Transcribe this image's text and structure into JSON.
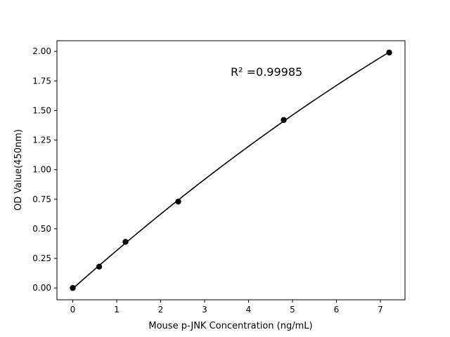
{
  "chart_data": {
    "type": "scatter",
    "title": "",
    "xlabel": "Mouse p-JNK Concentration (ng/mL)",
    "ylabel": "OD Value(450nm)",
    "xlim": [
      -0.36,
      7.56
    ],
    "ylim": [
      -0.1,
      2.09
    ],
    "xticks": [
      0,
      1,
      2,
      3,
      4,
      5,
      6,
      7
    ],
    "xtick_labels": [
      "0",
      "1",
      "2",
      "3",
      "4",
      "5",
      "6",
      "7"
    ],
    "yticks": [
      0,
      0.25,
      0.5,
      0.75,
      1.0,
      1.25,
      1.5,
      1.75,
      2.0
    ],
    "ytick_labels": [
      "0.00",
      "0.25",
      "0.50",
      "0.75",
      "1.00",
      "1.25",
      "1.50",
      "1.75",
      "2.00"
    ],
    "grid": false,
    "points": {
      "x": [
        0,
        0.6,
        1.2,
        2.4,
        4.8,
        7.2
      ],
      "y": [
        0.0,
        0.18,
        0.39,
        0.73,
        1.42,
        1.99
      ]
    },
    "fit_curve": "smooth fitted curve through points",
    "annotation": "R² =0.99985",
    "colors": {
      "points": "#000000",
      "line": "#000000"
    }
  }
}
